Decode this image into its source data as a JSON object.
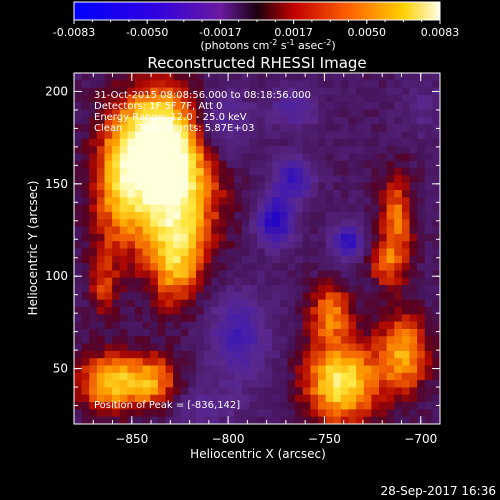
{
  "colorbar": {
    "ticks": [
      "-0.0083",
      "-0.0050",
      "-0.0017",
      "0.0017",
      "0.0050",
      "0.0083"
    ],
    "unit_prefix": "(photons cm",
    "unit_exp1": "-2",
    "unit_mid": " s",
    "unit_exp2": "-1",
    "unit_mid2": " asec",
    "unit_exp3": "-2",
    "unit_suffix": ")"
  },
  "image": {
    "title": "Reconstructed RHESSI Image",
    "info_lines": [
      "31-Oct-2015 08:08:56.000 to 08:18:56.000",
      "Detectors: 1F 5F 7F, Att 0",
      "Energy Range: 12.0 - 25.0 keV",
      "Clean     Total counts: 5.87E+03"
    ],
    "peak_label": "Position of Peak = [-836,142]"
  },
  "axes": {
    "xlabel": "Heliocentric X (arcsec)",
    "ylabel": "Heliocentric Y (arcsec)",
    "x_ticks": [
      "-850",
      "-800",
      "-750",
      "-700"
    ],
    "y_ticks": [
      "50",
      "100",
      "150",
      "200"
    ],
    "xlim": [
      -880,
      -690
    ],
    "ylim": [
      20,
      210
    ]
  },
  "timestamp": "28-Sep-2017 16:36",
  "colors": {
    "background": "#000000",
    "axis": "#ffffff"
  }
}
